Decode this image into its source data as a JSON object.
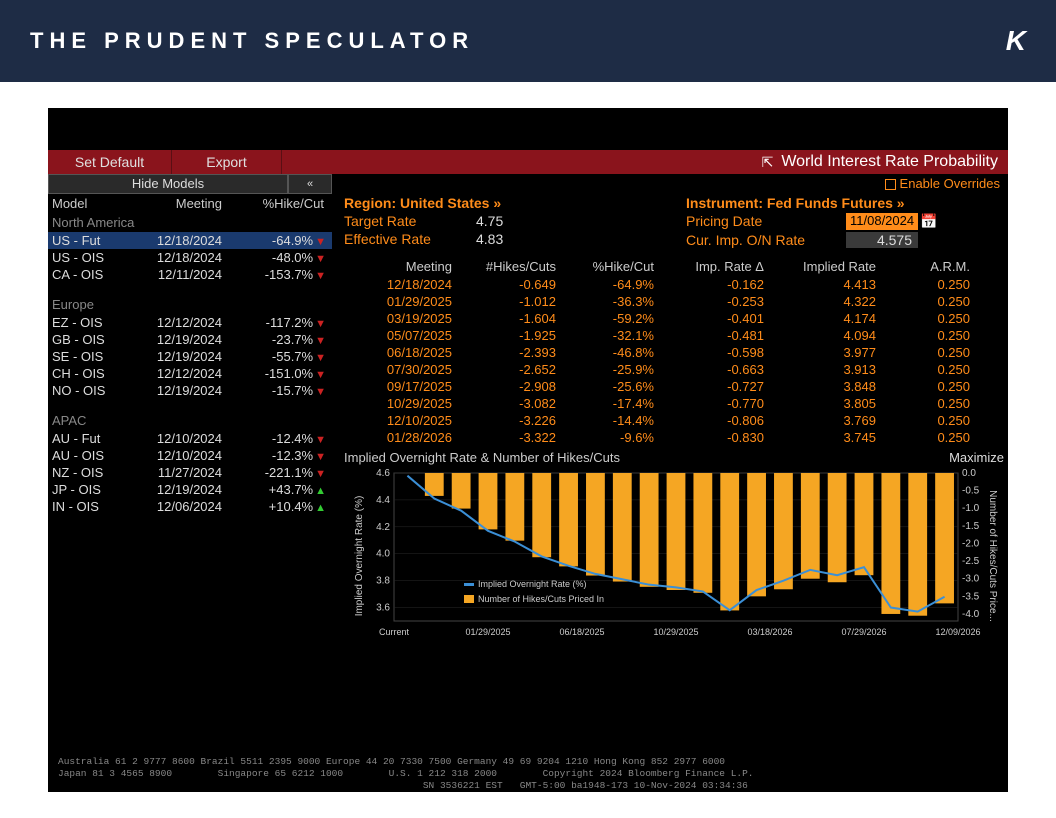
{
  "header": {
    "title": "THE PRUDENT SPECULATOR",
    "logo": "K"
  },
  "toolbar": {
    "set_default": "Set Default",
    "export": "Export",
    "title": "World Interest Rate Probability"
  },
  "sidebar": {
    "hide_models": "Hide Models",
    "chev": "«",
    "head_model": "Model",
    "head_meeting": "Meeting",
    "head_hikecut": "%Hike/Cut",
    "regions": [
      {
        "name": "North America",
        "rows": [
          {
            "model": "US - Fut",
            "meeting": "12/18/2024",
            "pct": "-64.9%",
            "dir": "down",
            "selected": true
          },
          {
            "model": "US - OIS",
            "meeting": "12/18/2024",
            "pct": "-48.0%",
            "dir": "down"
          },
          {
            "model": "CA - OIS",
            "meeting": "12/11/2024",
            "pct": "-153.7%",
            "dir": "down"
          }
        ]
      },
      {
        "name": "Europe",
        "rows": [
          {
            "model": "EZ - OIS",
            "meeting": "12/12/2024",
            "pct": "-117.2%",
            "dir": "down"
          },
          {
            "model": "GB - OIS",
            "meeting": "12/19/2024",
            "pct": "-23.7%",
            "dir": "down"
          },
          {
            "model": "SE - OIS",
            "meeting": "12/19/2024",
            "pct": "-55.7%",
            "dir": "down"
          },
          {
            "model": "CH - OIS",
            "meeting": "12/12/2024",
            "pct": "-151.0%",
            "dir": "down"
          },
          {
            "model": "NO - OIS",
            "meeting": "12/19/2024",
            "pct": "-15.7%",
            "dir": "down"
          }
        ]
      },
      {
        "name": "APAC",
        "rows": [
          {
            "model": "AU - Fut",
            "meeting": "12/10/2024",
            "pct": "-12.4%",
            "dir": "down"
          },
          {
            "model": "AU - OIS",
            "meeting": "12/10/2024",
            "pct": "-12.3%",
            "dir": "down"
          },
          {
            "model": "NZ - OIS",
            "meeting": "11/27/2024",
            "pct": "-221.1%",
            "dir": "down"
          },
          {
            "model": "JP - OIS",
            "meeting": "12/19/2024",
            "pct": "+43.7%",
            "dir": "up"
          },
          {
            "model": "IN - OIS",
            "meeting": "12/06/2024",
            "pct": "+10.4%",
            "dir": "up"
          }
        ]
      }
    ]
  },
  "right": {
    "enable_overrides": "Enable Overrides",
    "region_label": "Region: United States »",
    "target_rate_label": "Target Rate",
    "target_rate_value": "4.75",
    "eff_rate_label": "Effective Rate",
    "eff_rate_value": "4.83",
    "instrument_label": "Instrument: Fed Funds Futures »",
    "pricing_date_label": "Pricing Date",
    "pricing_date_value": "11/08/2024",
    "cur_imp_label": "Cur. Imp. O/N Rate",
    "cur_imp_value": "4.575"
  },
  "table": {
    "head": {
      "meeting": "Meeting",
      "hikes": "#Hikes/Cuts",
      "pct": "%Hike/Cut",
      "delta": "Imp. Rate Δ",
      "implied": "Implied Rate",
      "arm": "A.R.M."
    },
    "rows": [
      {
        "meeting": "12/18/2024",
        "hikes": "-0.649",
        "pct": "-64.9%",
        "delta": "-0.162",
        "implied": "4.413",
        "arm": "0.250"
      },
      {
        "meeting": "01/29/2025",
        "hikes": "-1.012",
        "pct": "-36.3%",
        "delta": "-0.253",
        "implied": "4.322",
        "arm": "0.250"
      },
      {
        "meeting": "03/19/2025",
        "hikes": "-1.604",
        "pct": "-59.2%",
        "delta": "-0.401",
        "implied": "4.174",
        "arm": "0.250"
      },
      {
        "meeting": "05/07/2025",
        "hikes": "-1.925",
        "pct": "-32.1%",
        "delta": "-0.481",
        "implied": "4.094",
        "arm": "0.250"
      },
      {
        "meeting": "06/18/2025",
        "hikes": "-2.393",
        "pct": "-46.8%",
        "delta": "-0.598",
        "implied": "3.977",
        "arm": "0.250"
      },
      {
        "meeting": "07/30/2025",
        "hikes": "-2.652",
        "pct": "-25.9%",
        "delta": "-0.663",
        "implied": "3.913",
        "arm": "0.250"
      },
      {
        "meeting": "09/17/2025",
        "hikes": "-2.908",
        "pct": "-25.6%",
        "delta": "-0.727",
        "implied": "3.848",
        "arm": "0.250"
      },
      {
        "meeting": "10/29/2025",
        "hikes": "-3.082",
        "pct": "-17.4%",
        "delta": "-0.770",
        "implied": "3.805",
        "arm": "0.250"
      },
      {
        "meeting": "12/10/2025",
        "hikes": "-3.226",
        "pct": "-14.4%",
        "delta": "-0.806",
        "implied": "3.769",
        "arm": "0.250"
      },
      {
        "meeting": "01/28/2026",
        "hikes": "-3.322",
        "pct": "-9.6%",
        "delta": "-0.830",
        "implied": "3.745",
        "arm": "0.250"
      }
    ]
  },
  "chart": {
    "title": "Implied Overnight Rate & Number of Hikes/Cuts",
    "maximize": "Maximize",
    "legend_line": "Implied Overnight Rate (%)",
    "legend_bars": "Number of Hikes/Cuts Priced In",
    "left_axis_label": "Implied Overnight Rate (%)",
    "right_axis_label": "Number of Hikes/Cuts Price...",
    "line_color": "#3b8fd6",
    "bar_color": "#f5a623",
    "grid_color": "#2a2a2a",
    "text_color": "#cccccc",
    "bg_color": "#000000",
    "left_ticks": [
      "3.6",
      "3.8",
      "4.0",
      "4.2",
      "4.4",
      "4.6"
    ],
    "left_min": 3.5,
    "left_max": 4.6,
    "right_ticks": [
      "0.0",
      "-0.5",
      "-1.0",
      "-1.5",
      "-2.0",
      "-2.5",
      "-3.0",
      "-3.5",
      "-4.0"
    ],
    "right_min": -4.2,
    "right_max": 0.0,
    "x_labels": [
      "Current",
      "01/29/2025",
      "06/18/2025",
      "10/29/2025",
      "03/18/2026",
      "07/29/2026",
      "12/09/2026"
    ],
    "line_values": [
      4.58,
      4.41,
      4.32,
      4.17,
      4.09,
      3.98,
      3.91,
      3.85,
      3.81,
      3.77,
      3.75,
      3.72,
      3.58,
      3.73,
      3.8,
      3.88,
      3.84,
      3.9,
      3.6,
      3.57,
      3.68
    ],
    "bar_values": [
      0,
      -0.65,
      -1.01,
      -1.6,
      -1.92,
      -2.39,
      -2.65,
      -2.91,
      -3.08,
      -3.23,
      -3.32,
      -3.4,
      -3.9,
      -3.5,
      -3.3,
      -3.0,
      -3.1,
      -2.9,
      -4.0,
      -4.05,
      -3.7
    ]
  },
  "footer": {
    "line1": "Australia 61 2 9777 8600 Brazil 5511 2395 9000 Europe 44 20 7330 7500 Germany 49 69 9204 1210 Hong Kong 852 2977 6000",
    "line2": "Japan 81 3 4565 8900        Singapore 65 6212 1000        U.S. 1 212 318 2000        Copyright 2024 Bloomberg Finance L.P.",
    "line3": "                                                                SN 3536221 EST   GMT-5:00 ba1948-173 10-Nov-2024 03:34:36"
  }
}
